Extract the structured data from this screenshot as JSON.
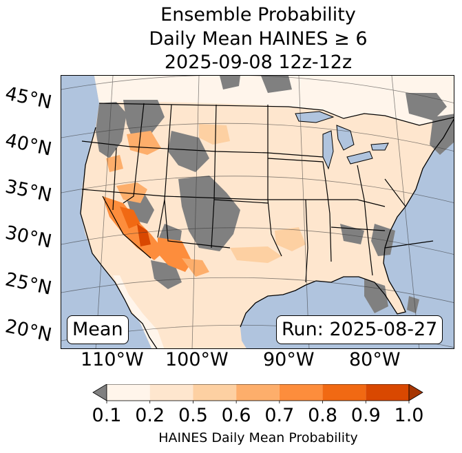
{
  "title": {
    "line1": "Ensemble Probability",
    "line2": "Daily Mean HAINES ≥ 6",
    "line3": "2025-09-08 12z-12z"
  },
  "map": {
    "latitude_labels": [
      "45°N",
      "40°N",
      "35°N",
      "30°N",
      "25°N",
      "20°N"
    ],
    "longitude_labels": [
      "110°W",
      "100°W",
      "90°W",
      "80°W"
    ],
    "stat_label": "Mean",
    "run_label": "Run: 2025-08-27",
    "colors": {
      "ocean": "#b0c4de",
      "below_min": "#808080",
      "lake": "#b0c4de"
    }
  },
  "colorbar": {
    "ticks": [
      "0.1",
      "0.2",
      "0.5",
      "0.6",
      "0.7",
      "0.8",
      "0.9",
      "1.0"
    ],
    "colors": [
      "#fff5eb",
      "#fee6ce",
      "#fdd0a2",
      "#fdae6b",
      "#fd8d3c",
      "#f16913",
      "#d94801"
    ],
    "under_color": "#808080",
    "over_color": "#a63603",
    "label": "HAINES Daily Mean Probability"
  }
}
